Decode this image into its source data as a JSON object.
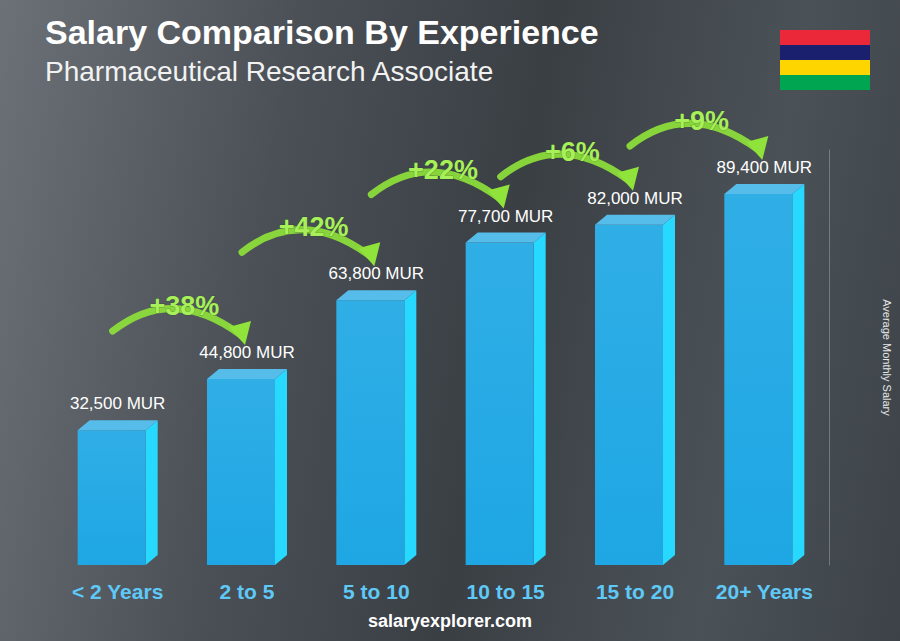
{
  "chart_data": {
    "type": "bar",
    "title": "Salary Comparison By Experience",
    "subtitle": "Pharmaceutical Research Associate",
    "categories": [
      "< 2 Years",
      "2 to 5",
      "5 to 10",
      "10 to 15",
      "15 to 20",
      "20+ Years"
    ],
    "values": [
      32500,
      44800,
      63800,
      77700,
      82000,
      89400
    ],
    "value_labels": [
      "32,500 MUR",
      "44,800 MUR",
      "63,800 MUR",
      "77,700 MUR",
      "82,000 MUR",
      "89,400 MUR"
    ],
    "data_labels": true,
    "color": "#1ea7e4",
    "ylim": [
      0,
      100000
    ],
    "tick_labels": "x",
    "grid": false,
    "y_label": "Average Monthly Salary",
    "annotations": [
      "+38%",
      "+42%",
      "+22%",
      "+6%",
      "+9%"
    ],
    "source": "salaryexplorer.com"
  }
}
